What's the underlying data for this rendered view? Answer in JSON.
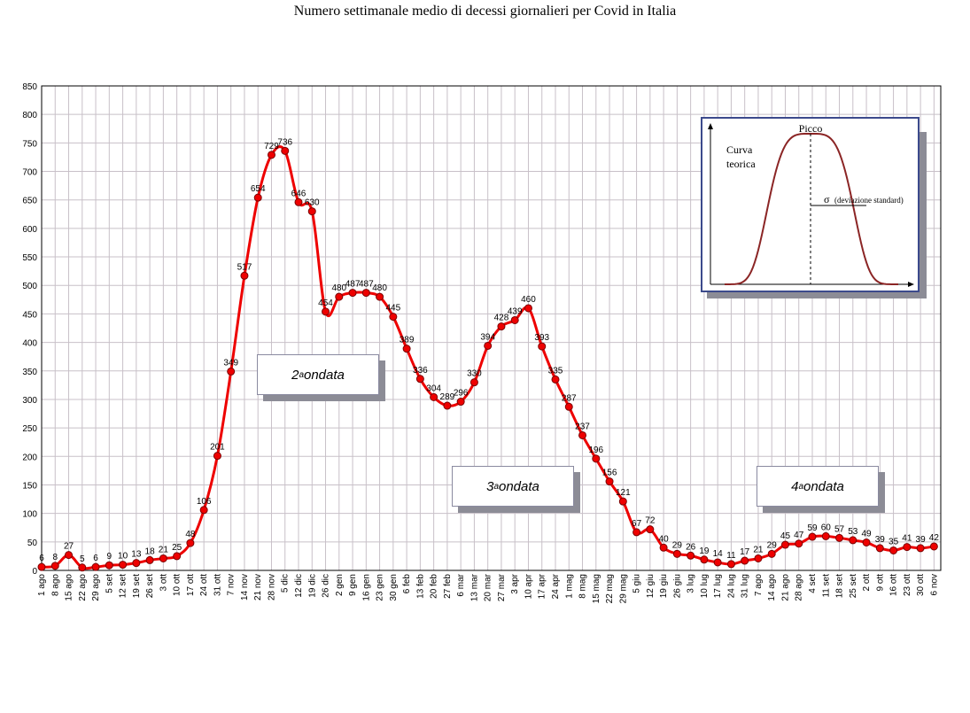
{
  "chart_data": {
    "type": "line",
    "title": "Numero settimanale medio di decessi giornalieri per Covid in Italia",
    "xlabel": "",
    "ylabel": "",
    "ylim": [
      0,
      850
    ],
    "yticks": [
      0,
      50,
      100,
      150,
      200,
      250,
      300,
      350,
      400,
      450,
      500,
      550,
      600,
      650,
      700,
      750,
      800,
      850
    ],
    "grid": true,
    "series_color": "#ee0000",
    "categories": [
      "1 ago",
      "8 ago",
      "15 ago",
      "22 ago",
      "29 ago",
      "5 set",
      "12 set",
      "19 set",
      "26 set",
      "3 ott",
      "10 ott",
      "17 ott",
      "24 ott",
      "31 ott",
      "7 nov",
      "14 nov",
      "21 nov",
      "28 nov",
      "5 dic",
      "12 dic",
      "19 dic",
      "26 dic",
      "2 gen",
      "9 gen",
      "16 gen",
      "23 gen",
      "30 gen",
      "6 feb",
      "13 feb",
      "20 feb",
      "27 feb",
      "6 mar",
      "13 mar",
      "20 mar",
      "27 mar",
      "3 apr",
      "10 apr",
      "17 apr",
      "24 apr",
      "1 mag",
      "8 mag",
      "15 mag",
      "22 mag",
      "29 mag",
      "5 giu",
      "12 giu",
      "19 giu",
      "26 giu",
      "3 lug",
      "10 lug",
      "17 lug",
      "24 lug",
      "31 lug",
      "7 ago",
      "14 ago",
      "21 ago",
      "28 ago",
      "4 set",
      "11 set",
      "18 set",
      "25 set",
      "2 ott",
      "9 ott",
      "16 ott",
      "23 ott",
      "30 ott",
      "6 nov"
    ],
    "values": [
      6,
      8,
      27,
      5,
      6,
      9,
      10,
      13,
      18,
      21,
      25,
      48,
      106,
      201,
      349,
      517,
      654,
      729,
      736,
      646,
      630,
      454,
      480,
      487,
      487,
      480,
      445,
      389,
      336,
      304,
      289,
      296,
      330,
      394,
      428,
      439,
      460,
      393,
      335,
      287,
      237,
      196,
      156,
      121,
      67,
      72,
      40,
      29,
      26,
      19,
      14,
      11,
      17,
      21,
      29,
      45,
      47,
      59,
      60,
      57,
      53,
      49,
      39,
      35,
      41,
      39,
      42
    ],
    "annotations": [
      {
        "base": "2",
        "sup": "a",
        "text": " ondata"
      },
      {
        "base": "3",
        "sup": "a",
        "text": " ondata"
      },
      {
        "base": "4",
        "sup": "a",
        "text": " ondata"
      }
    ]
  },
  "inset": {
    "curve_label_line1": "Curva",
    "curve_label_line2": "teorica",
    "peak_label": "Picco",
    "sigma_symbol": "σ",
    "sigma_label": "(deviazione standard)",
    "curve_color": "#8b2525"
  }
}
